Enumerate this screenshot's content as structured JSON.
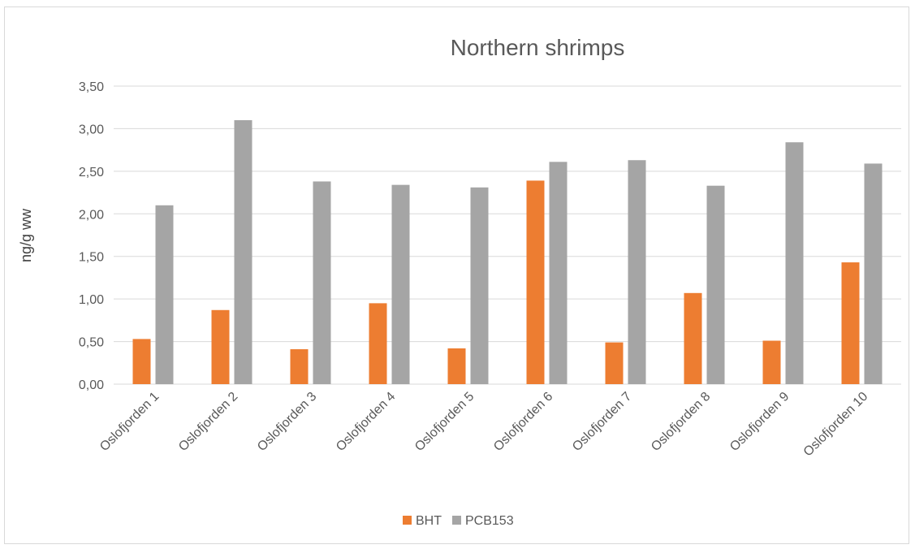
{
  "chart_data": {
    "type": "bar",
    "title": "Northern shrimps",
    "xlabel": "",
    "ylabel": "ng/g ww",
    "categories": [
      "Oslofjorden 1",
      "Oslofjorden 2",
      "Oslofjorden 3",
      "Oslofjorden 4",
      "Oslofjorden 5",
      "Oslofjorden 6",
      "Oslofjorden 7",
      "Oslofjorden 8",
      "Oslofjorden 9",
      "Oslofjorden 10"
    ],
    "series": [
      {
        "name": "BHT",
        "color": "#ed7d31",
        "values": [
          0.53,
          0.87,
          0.41,
          0.95,
          0.42,
          2.39,
          0.49,
          1.07,
          0.51,
          1.43
        ]
      },
      {
        "name": "PCB153",
        "color": "#a5a5a5",
        "values": [
          2.1,
          3.1,
          2.38,
          2.34,
          2.31,
          2.61,
          2.63,
          2.33,
          2.84,
          2.59
        ]
      }
    ],
    "ylim": [
      0,
      3.5
    ],
    "yticks": [
      "0,00",
      "0,50",
      "1,00",
      "1,50",
      "2,00",
      "2,50",
      "3,00",
      "3,50"
    ],
    "grid": true,
    "legend": "bottom"
  }
}
